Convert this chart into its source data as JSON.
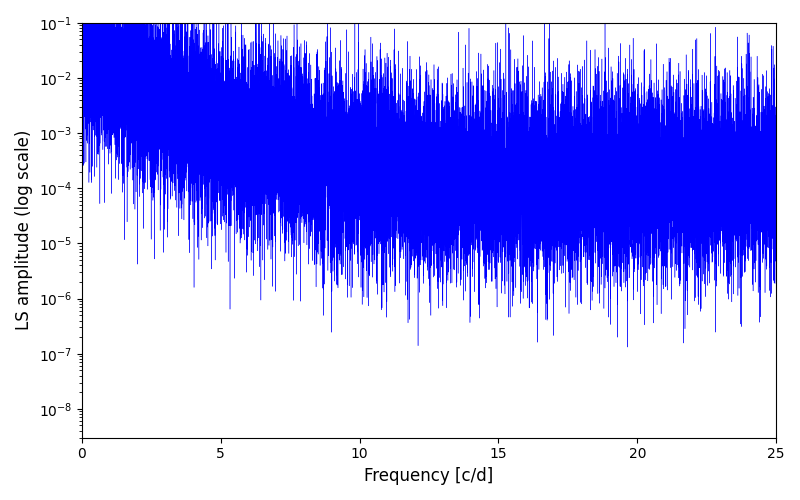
{
  "title": "",
  "xlabel": "Frequency [c/d]",
  "ylabel": "LS amplitude (log scale)",
  "line_color": "#0000ff",
  "background_color": "#ffffff",
  "xlim": [
    0,
    25
  ],
  "ylim_low": 3e-09,
  "ylim_high": 0.1,
  "yscale": "log",
  "figsize": [
    8.0,
    5.0
  ],
  "dpi": 100,
  "freq_max": 25.0,
  "n_points": 20000,
  "seed": 12345
}
